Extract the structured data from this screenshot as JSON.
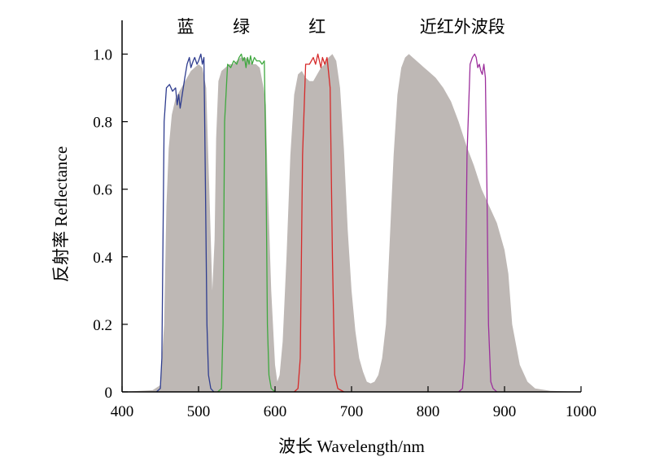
{
  "chart_data": {
    "type": "area",
    "title": "",
    "xlabel": "波长 Wavelength/nm",
    "ylabel": "反射率 Reflectance",
    "xlim": [
      400,
      1000
    ],
    "ylim": [
      0,
      1.1
    ],
    "x_ticks": [
      400,
      500,
      600,
      700,
      800,
      900,
      1000
    ],
    "y_ticks": [
      0,
      0.2,
      0.4,
      0.6,
      0.8,
      1.0
    ],
    "x_tick_labels": [
      "400",
      "500",
      "600",
      "700",
      "800",
      "900",
      "1000"
    ],
    "y_tick_labels": [
      "0",
      "0.2",
      "0.4",
      "0.6",
      "0.8",
      "1.0"
    ],
    "grid": false,
    "band_labels": [
      {
        "text": "蓝",
        "x": 483
      },
      {
        "text": "绿",
        "x": 556
      },
      {
        "text": "红",
        "x": 655
      },
      {
        "text": "近红外波段",
        "x": 845
      }
    ],
    "series": [
      {
        "kind": "area",
        "color": "#beb8b5",
        "x": [
          400,
          440,
          450,
          455,
          458,
          461,
          465,
          470,
          480,
          490,
          500,
          505,
          510,
          514,
          518,
          521,
          523,
          526,
          530,
          535,
          540,
          545,
          550,
          555,
          560,
          565,
          570,
          575,
          580,
          585,
          588,
          590,
          595,
          600,
          603,
          606,
          610,
          615,
          620,
          625,
          630,
          635,
          640,
          645,
          650,
          655,
          660,
          665,
          670,
          675,
          680,
          685,
          690,
          695,
          700,
          705,
          710,
          715,
          720,
          725,
          730,
          735,
          740,
          745,
          750,
          755,
          760,
          765,
          770,
          775,
          780,
          785,
          790,
          795,
          800,
          810,
          820,
          830,
          840,
          850,
          860,
          870,
          880,
          890,
          900,
          905,
          910,
          920,
          930,
          940,
          960,
          1000
        ],
        "y": [
          0,
          0.005,
          0.02,
          0.2,
          0.55,
          0.72,
          0.82,
          0.87,
          0.91,
          0.95,
          0.97,
          0.96,
          0.9,
          0.6,
          0.3,
          0.45,
          0.75,
          0.92,
          0.95,
          0.96,
          0.97,
          0.97,
          0.98,
          0.99,
          0.99,
          0.985,
          0.97,
          0.97,
          0.96,
          0.9,
          0.85,
          0.65,
          0.3,
          0.08,
          0.03,
          0.05,
          0.15,
          0.4,
          0.7,
          0.88,
          0.94,
          0.95,
          0.93,
          0.92,
          0.92,
          0.94,
          0.96,
          0.97,
          0.99,
          1.0,
          0.98,
          0.9,
          0.72,
          0.48,
          0.3,
          0.18,
          0.1,
          0.06,
          0.03,
          0.025,
          0.03,
          0.05,
          0.1,
          0.2,
          0.45,
          0.7,
          0.88,
          0.96,
          0.99,
          1.0,
          0.99,
          0.98,
          0.97,
          0.96,
          0.95,
          0.93,
          0.9,
          0.86,
          0.8,
          0.73,
          0.67,
          0.6,
          0.55,
          0.5,
          0.42,
          0.35,
          0.2,
          0.08,
          0.03,
          0.01,
          0.003,
          0
        ]
      },
      {
        "kind": "line",
        "color": "#2f3d8f",
        "x": [
          445,
          450,
          452,
          455,
          458,
          462,
          466,
          470,
          472,
          474,
          476,
          478,
          480,
          482,
          485,
          488,
          490,
          493,
          495,
          498,
          500,
          503,
          505,
          507,
          509,
          511,
          513,
          516,
          520
        ],
        "y": [
          0,
          0.01,
          0.1,
          0.8,
          0.9,
          0.91,
          0.89,
          0.9,
          0.85,
          0.88,
          0.84,
          0.87,
          0.9,
          0.93,
          0.97,
          0.99,
          0.96,
          0.98,
          0.99,
          0.97,
          0.98,
          1.0,
          0.97,
          0.99,
          0.6,
          0.2,
          0.05,
          0.01,
          0
        ]
      },
      {
        "kind": "line",
        "color": "#3fa83f",
        "x": [
          525,
          530,
          532,
          534,
          538,
          542,
          546,
          550,
          553,
          556,
          558,
          560,
          562,
          564,
          566,
          568,
          570,
          573,
          576,
          580,
          583,
          586,
          588,
          590,
          592,
          595,
          600
        ],
        "y": [
          0,
          0.01,
          0.2,
          0.8,
          0.97,
          0.96,
          0.98,
          0.97,
          0.99,
          1.0,
          0.98,
          0.99,
          0.96,
          0.99,
          0.97,
          0.995,
          0.97,
          0.99,
          0.98,
          0.98,
          0.97,
          0.98,
          0.7,
          0.2,
          0.05,
          0.01,
          0
        ]
      },
      {
        "kind": "line",
        "color": "#d62a2a",
        "x": [
          625,
          630,
          633,
          636,
          640,
          645,
          650,
          653,
          656,
          658,
          660,
          662,
          665,
          668,
          672,
          675,
          678,
          682,
          690
        ],
        "y": [
          0,
          0.01,
          0.1,
          0.7,
          0.97,
          0.97,
          0.99,
          0.97,
          1.0,
          0.98,
          0.96,
          0.99,
          0.97,
          0.99,
          0.9,
          0.4,
          0.05,
          0.01,
          0
        ]
      },
      {
        "kind": "line",
        "color": "#9c2f9c",
        "x": [
          840,
          845,
          848,
          851,
          855,
          858,
          861,
          863,
          865,
          867,
          869,
          871,
          873,
          875,
          877,
          879,
          882,
          885,
          890
        ],
        "y": [
          0,
          0.01,
          0.1,
          0.7,
          0.97,
          0.99,
          1.0,
          0.99,
          0.96,
          0.97,
          0.95,
          0.94,
          0.97,
          0.93,
          0.6,
          0.2,
          0.03,
          0.01,
          0
        ]
      }
    ]
  }
}
